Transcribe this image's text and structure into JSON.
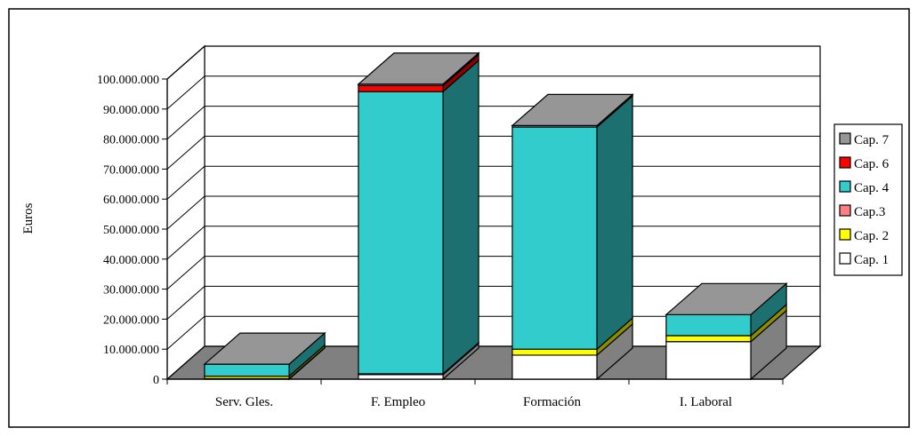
{
  "chart_data": {
    "type": "bar",
    "subtype": "stacked-3d",
    "title": "",
    "xlabel": "",
    "ylabel": "Euros",
    "ylim": [
      0,
      100000000
    ],
    "ytick_step": 10000000,
    "yticks": [
      "0",
      "10.000.000",
      "20.000.000",
      "30.000.000",
      "40.000.000",
      "50.000.000",
      "60.000.000",
      "70.000.000",
      "80.000.000",
      "90.000.000",
      "100.000.000"
    ],
    "grid": true,
    "legend_position": "right",
    "categories": [
      "Serv. Gles.",
      "F. Empleo",
      "Formación",
      "I. Laboral"
    ],
    "series": [
      {
        "name": "Cap. 1",
        "color": "#ffffff",
        "values": [
          200000,
          1500000,
          8000000,
          12500000
        ]
      },
      {
        "name": "Cap. 2",
        "color": "#ffff00",
        "values": [
          800000,
          300000,
          2000000,
          2000000
        ]
      },
      {
        "name": "Cap.3",
        "color": "#ff8080",
        "values": [
          0,
          0,
          0,
          0
        ]
      },
      {
        "name": "Cap. 4",
        "color": "#33cccc",
        "values": [
          4000000,
          94000000,
          74000000,
          7000000
        ]
      },
      {
        "name": "Cap. 6",
        "color": "#ff0000",
        "values": [
          0,
          2000000,
          0,
          0
        ]
      },
      {
        "name": "Cap. 7",
        "color": "#969696",
        "values": [
          0,
          500000,
          500000,
          0
        ]
      }
    ]
  }
}
